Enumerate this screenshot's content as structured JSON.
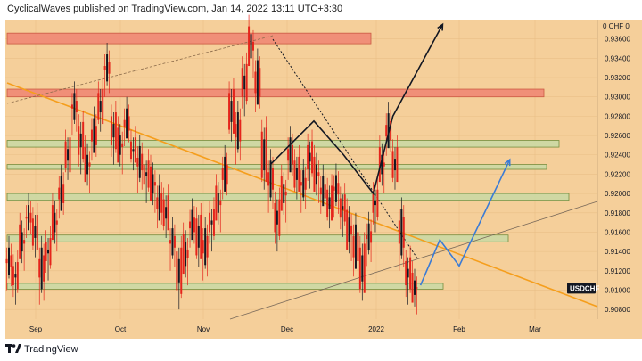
{
  "header": {
    "text": "CyclicalWaves published on TradingView.com, Jan 14, 2022 13:11 UTC+3:30"
  },
  "footer": {
    "logo_text": "TradingView"
  },
  "colors": {
    "background": "#f5cf9a",
    "candle": "#e5241b",
    "candle_dark": "#131722",
    "trendline": "#f59e1c",
    "projection_blue": "#3a7bd5",
    "zone_green": "#cdd9a4",
    "zone_red": "#f08c77"
  },
  "chart_data": {
    "type": "candlestick",
    "symbol": "USDCHF",
    "currency_label": "CHF",
    "price_axis_top_label": "0",
    "y_ticks": [
      "0.93600",
      "0.93400",
      "0.93200",
      "0.93000",
      "0.92800",
      "0.92600",
      "0.92400",
      "0.92200",
      "0.92000",
      "0.91800",
      "0.91600",
      "0.91400",
      "0.91200",
      "0.91000",
      "0.90800"
    ],
    "x_ticks": [
      "Sep",
      "Oct",
      "Nov",
      "Dec",
      "2022",
      "Feb",
      "Mar"
    ],
    "ylim": [
      0.907,
      0.938
    ],
    "current_price_label": "USDCHF",
    "zones": [
      {
        "name": "top-red",
        "color": "red",
        "range": [
          0.9355,
          0.9366
        ],
        "x_start": "Aug",
        "x_end": "Dec"
      },
      {
        "name": "upper-red",
        "color": "red",
        "range": [
          0.93,
          0.9308
        ],
        "x_start": "Aug",
        "x_end": "Feb"
      },
      {
        "name": "green-1",
        "color": "green",
        "range": [
          0.9248,
          0.9255
        ],
        "x_start": "Aug",
        "x_end": "Feb"
      },
      {
        "name": "green-2",
        "color": "green",
        "range": [
          0.9225,
          0.923
        ],
        "x_start": "Aug",
        "x_end": "Feb"
      },
      {
        "name": "green-3",
        "color": "green",
        "range": [
          0.9193,
          0.92
        ],
        "x_start": "Aug",
        "x_end": "Mar"
      },
      {
        "name": "green-4",
        "color": "green",
        "range": [
          0.915,
          0.9157
        ],
        "x_start": "Aug",
        "x_end": "Feb"
      },
      {
        "name": "green-5",
        "color": "green",
        "range": [
          0.9101,
          0.9107
        ],
        "x_start": "Aug",
        "x_end": "Jan"
      }
    ],
    "price_path": [
      [
        0.914,
        0.912
      ],
      [
        0.9125,
        0.9105
      ],
      [
        0.916,
        0.914
      ],
      [
        0.918,
        0.917
      ],
      [
        0.917,
        0.915
      ],
      [
        0.914,
        0.9105
      ],
      [
        0.915,
        0.913
      ],
      [
        0.918,
        0.916
      ],
      [
        0.921,
        0.919
      ],
      [
        0.925,
        0.923
      ],
      [
        0.93,
        0.928
      ],
      [
        0.927,
        0.924
      ],
      [
        0.924,
        0.922
      ],
      [
        0.927,
        0.925
      ],
      [
        0.93,
        0.928
      ],
      [
        0.934,
        0.932
      ],
      [
        0.928,
        0.925
      ],
      [
        0.926,
        0.924
      ],
      [
        0.928,
        0.9265
      ],
      [
        0.925,
        0.924
      ],
      [
        0.9245,
        0.922
      ],
      [
        0.923,
        0.921
      ],
      [
        0.922,
        0.92
      ],
      [
        0.92,
        0.918
      ],
      [
        0.919,
        0.917
      ],
      [
        0.916,
        0.914
      ],
      [
        0.914,
        0.91
      ],
      [
        0.915,
        0.9125
      ],
      [
        0.9175,
        0.916
      ],
      [
        0.917,
        0.914
      ],
      [
        0.916,
        0.913
      ],
      [
        0.918,
        0.916
      ],
      [
        0.92,
        0.918
      ],
      [
        0.923,
        0.921
      ],
      [
        0.93,
        0.927
      ],
      [
        0.928,
        0.925
      ],
      [
        0.933,
        0.93
      ],
      [
        0.9365,
        0.934
      ],
      [
        0.933,
        0.93
      ],
      [
        0.926,
        0.922
      ],
      [
        0.923,
        0.92
      ],
      [
        0.919,
        0.916
      ],
      [
        0.921,
        0.919
      ],
      [
        0.925,
        0.923
      ],
      [
        0.923,
        0.921
      ],
      [
        0.922,
        0.92
      ],
      [
        0.925,
        0.9225
      ],
      [
        0.923,
        0.921
      ],
      [
        0.921,
        0.9195
      ],
      [
        0.92,
        0.918
      ],
      [
        0.9215,
        0.9195
      ],
      [
        0.9195,
        0.9175
      ],
      [
        0.9175,
        0.915
      ],
      [
        0.916,
        0.913
      ],
      [
        0.914,
        0.9105
      ],
      [
        0.9165,
        0.9145
      ],
      [
        0.92,
        0.918
      ],
      [
        0.924,
        0.922
      ],
      [
        0.9275,
        0.9255
      ],
      [
        0.924,
        0.922
      ],
      [
        0.918,
        0.914
      ],
      [
        0.913,
        0.9105
      ],
      [
        0.911,
        0.9095
      ]
    ],
    "projections": [
      {
        "name": "black-wave",
        "color": "black",
        "points": [
          [
            0.923,
            "Nov 25"
          ],
          [
            0.9275,
            "Dec 10"
          ],
          [
            0.924,
            "Dec 20"
          ],
          [
            0.92,
            "Dec 30"
          ],
          [
            0.928,
            "Jan 7"
          ],
          [
            0.9375,
            "Jan 25"
          ]
        ]
      },
      {
        "name": "blue-wave",
        "color": "blue",
        "points": [
          [
            0.9105,
            "Jan 17"
          ],
          [
            0.9152,
            "Jan 24"
          ],
          [
            0.9125,
            "Jan 31"
          ],
          [
            0.9235,
            "Feb 21"
          ]
        ]
      }
    ]
  }
}
